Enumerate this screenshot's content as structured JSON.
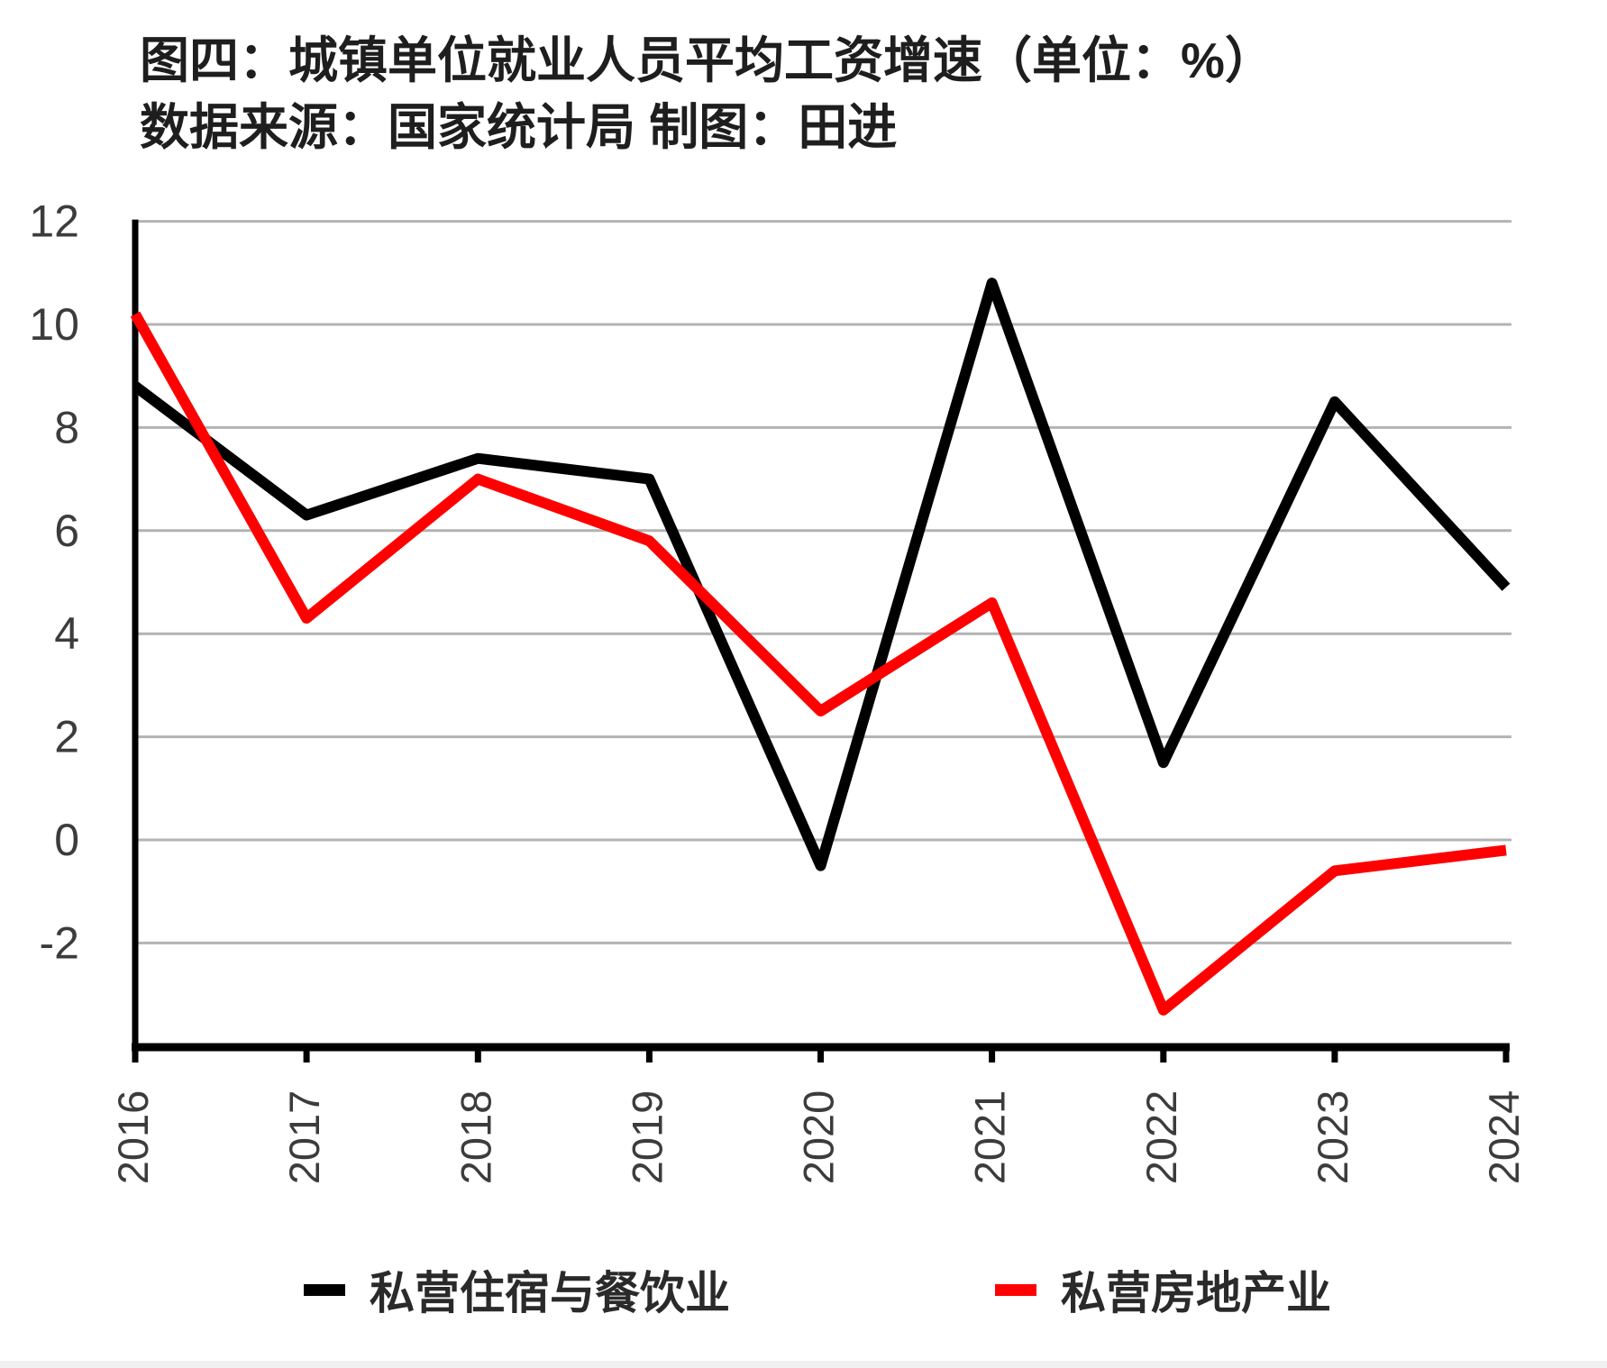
{
  "title": {
    "line1": "图四：城镇单位就业人员平均工资增速（单位：%）",
    "line2": "数据来源：国家统计局 制图：田进"
  },
  "chart_data": {
    "type": "line",
    "title": "城镇单位就业人员平均工资增速（单位：%）",
    "source_note": "数据来源：国家统计局 制图：田进",
    "categories": [
      "2016",
      "2017",
      "2018",
      "2019",
      "2020",
      "2021",
      "2022",
      "2023",
      "2024"
    ],
    "series": [
      {
        "name": "私营住宿与餐饮业",
        "color": "#000000",
        "values": [
          8.8,
          6.3,
          7.4,
          7.0,
          -0.5,
          10.8,
          1.5,
          8.5,
          4.9
        ]
      },
      {
        "name": "私营房地产业",
        "color": "#fe0000",
        "values": [
          10.2,
          4.3,
          7.0,
          5.8,
          2.5,
          4.6,
          -3.3,
          -0.6,
          -0.2
        ]
      }
    ],
    "xlabel": "",
    "ylabel": "",
    "yticks": [
      12,
      10,
      8,
      6,
      4,
      2,
      0,
      -2
    ],
    "ylim": [
      -2,
      12
    ],
    "grid": true,
    "grid_color": "#b3b3b3",
    "axis_color": "#000000",
    "tick_label_color": "#3c3c3c",
    "legend_position": "bottom",
    "x_tick_label_rotation": -90
  }
}
